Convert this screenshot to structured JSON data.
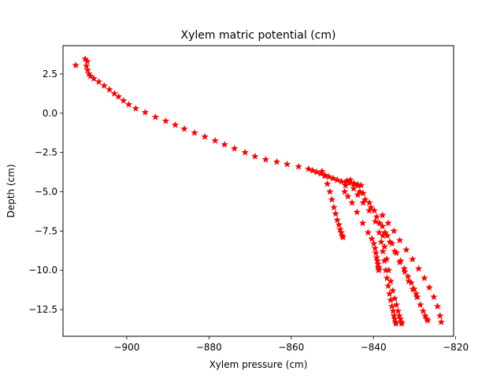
{
  "chart_data": {
    "type": "scatter",
    "title": "Xylem matric potential (cm)",
    "xlabel": "Xylem pressure (cm)",
    "ylabel": "Depth (cm)",
    "xlim": [
      -915.5,
      -820.5
    ],
    "ylim": [
      -14.2,
      4.3
    ],
    "xticks": [
      -900,
      -880,
      -860,
      -840,
      -820
    ],
    "xtick_labels": [
      "−900",
      "−880",
      "−860",
      "−840",
      "−820"
    ],
    "yticks": [
      2.5,
      0.0,
      -2.5,
      -5.0,
      -7.5,
      -10.0,
      -12.5
    ],
    "ytick_labels": [
      "2.5",
      "0.0",
      "−2.5",
      "−5.0",
      "−7.5",
      "−10.0",
      "−12.5"
    ],
    "grid": false,
    "marker": "star",
    "color": "#ff0000",
    "series": [
      {
        "x": [
          -912.4,
          -910.1,
          -909.6,
          -909.8,
          -909.5,
          -909.2,
          -908.8,
          -908.0,
          -906.8,
          -905.5,
          -904.2,
          -903.0,
          -902.0,
          -900.8,
          -899.5,
          -897.8,
          -895.5,
          -893.0,
          -890.5,
          -888.2,
          -886.0,
          -883.5,
          -881.0,
          -878.5,
          -876.2,
          -873.8,
          -871.2,
          -868.8,
          -866.2,
          -863.5,
          -861.0,
          -858.2,
          -855.8,
          -854.8,
          -853.8,
          -852.8,
          -851.8,
          -850.8,
          -849.8,
          -848.8,
          -847.8,
          -846.8,
          -845.8,
          -844.8,
          -843.8,
          -843.0
        ],
        "y": [
          3.05,
          3.45,
          3.3,
          3.0,
          2.75,
          2.5,
          2.35,
          2.2,
          2.0,
          1.75,
          1.5,
          1.25,
          1.05,
          0.8,
          0.55,
          0.3,
          0.05,
          -0.25,
          -0.5,
          -0.75,
          -1.0,
          -1.25,
          -1.5,
          -1.75,
          -2.0,
          -2.25,
          -2.5,
          -2.75,
          -2.95,
          -3.1,
          -3.25,
          -3.4,
          -3.55,
          -3.65,
          -3.75,
          -3.85,
          -3.95,
          -4.05,
          -4.15,
          -4.25,
          -4.35,
          -4.4,
          -4.45,
          -4.5,
          -4.55,
          -4.6
        ]
      },
      {
        "x": [
          -852.5,
          -851.8,
          -851.2,
          -850.6,
          -850.1,
          -849.6,
          -849.2,
          -848.8,
          -848.4,
          -848.1,
          -847.8,
          -847.6,
          -847.4
        ],
        "y": [
          -3.7,
          -4.0,
          -4.5,
          -5.0,
          -5.5,
          -6.0,
          -6.4,
          -6.8,
          -7.1,
          -7.4,
          -7.6,
          -7.8,
          -7.9
        ]
      },
      {
        "x": [
          -846.4,
          -846.8,
          -847.0,
          -846.2,
          -845.2,
          -844.0,
          -842.6,
          -841.3,
          -840.4,
          -839.9,
          -839.6,
          -839.4,
          -839.2,
          -839.0,
          -838.9,
          -838.8,
          -838.7,
          -838.7
        ],
        "y": [
          -4.3,
          -4.6,
          -5.0,
          -5.3,
          -5.7,
          -6.3,
          -7.0,
          -7.6,
          -8.0,
          -8.3,
          -8.6,
          -8.9,
          -9.2,
          -9.4,
          -9.6,
          -9.8,
          -9.9,
          -10.0
        ]
      },
      {
        "x": [
          -845.6,
          -844.8,
          -843.8,
          -842.5,
          -841.0,
          -839.5,
          -838.6,
          -838.1,
          -837.7,
          -837.3,
          -837.0,
          -836.7,
          -836.4,
          -836.1,
          -835.8,
          -835.5,
          -835.2,
          -835.0,
          -834.8,
          -834.6,
          -834.5
        ],
        "y": [
          -4.25,
          -4.8,
          -5.2,
          -5.7,
          -6.2,
          -6.9,
          -7.6,
          -8.2,
          -8.8,
          -9.4,
          -10.0,
          -10.5,
          -11.0,
          -11.5,
          -11.9,
          -12.3,
          -12.6,
          -12.9,
          -13.1,
          -13.3,
          -13.4
        ]
      },
      {
        "x": [
          -843.8,
          -842.5,
          -841.0,
          -839.8,
          -838.5,
          -837.7,
          -837.3,
          -836.8,
          -836.3,
          -835.8,
          -835.3,
          -834.8,
          -834.4,
          -834.0,
          -833.7,
          -833.4,
          -833.2,
          -833.1
        ],
        "y": [
          -4.6,
          -5.1,
          -5.7,
          -6.2,
          -7.0,
          -7.8,
          -8.5,
          -9.3,
          -10.0,
          -10.7,
          -11.3,
          -11.8,
          -12.2,
          -12.6,
          -12.9,
          -13.1,
          -13.3,
          -13.4
        ]
      },
      {
        "x": [
          -844.6,
          -843.3,
          -842.0,
          -840.6,
          -839.2,
          -837.8,
          -836.6,
          -835.5,
          -834.4,
          -833.4,
          -832.5,
          -831.6,
          -830.8,
          -830.1,
          -829.6,
          -829.3
        ],
        "y": [
          -4.5,
          -5.0,
          -5.5,
          -6.0,
          -6.6,
          -7.2,
          -7.8,
          -8.3,
          -8.9,
          -9.4,
          -9.9,
          -10.4,
          -10.8,
          -11.2,
          -11.5,
          -11.7
        ]
      },
      {
        "x": [
          -837.2,
          -836.0,
          -834.8,
          -833.6,
          -832.4,
          -831.4,
          -830.4,
          -829.4,
          -828.6,
          -827.9,
          -827.4,
          -827.0,
          -826.8
        ],
        "y": [
          -7.6,
          -8.2,
          -8.8,
          -9.5,
          -10.1,
          -10.7,
          -11.2,
          -11.7,
          -12.2,
          -12.6,
          -12.9,
          -13.1,
          -13.2
        ]
      },
      {
        "x": [
          -837.8,
          -836.4,
          -835.0,
          -833.6,
          -832.0,
          -830.5,
          -829.0,
          -827.6,
          -826.4,
          -825.3,
          -824.4,
          -823.8,
          -823.5
        ],
        "y": [
          -6.5,
          -7.0,
          -7.5,
          -8.1,
          -8.7,
          -9.3,
          -9.9,
          -10.5,
          -11.1,
          -11.7,
          -12.3,
          -12.9,
          -13.3
        ]
      }
    ]
  }
}
